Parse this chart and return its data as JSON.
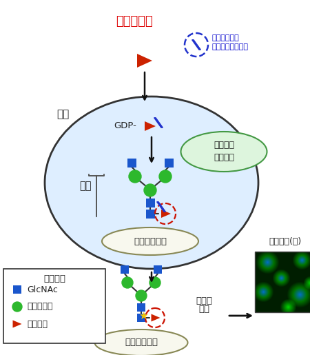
{
  "bg_color": "#ffffff",
  "sugar_analog_text": "糖アナログ",
  "sugar_analog_color": "#dd0000",
  "detection_text_line1": "検出のための",
  "detection_text_line2": "目印（アルキン）",
  "detection_text_color": "#0000cc",
  "cell_text": "細胞",
  "gdp_text": "GDP-",
  "fukose_enzyme_text_line1": "フコース",
  "fukose_enzyme_text_line2": "転移酵素",
  "glycan_text": "糖鎖",
  "glycoprotein_text": "糖タンパク質",
  "legend_title": "糖の記号",
  "legend_item1": "GlcNAc",
  "legend_item2": "マンノース",
  "legend_item3": "フコース",
  "glycan_detection_text": "糖鎖検出(緑)",
  "detection_arrow_text_line1": "目印の",
  "detection_arrow_text_line2": "検出",
  "blue_sq": "#1a56cc",
  "green_ci": "#2db82d",
  "red_tri": "#cc2200",
  "dashed_red": "#cc1100",
  "dashed_blue": "#2233cc",
  "cell_fill": "#deeeff",
  "cell_edge": "#333333",
  "fuc_fill": "#ddf5dd",
  "fuc_edge": "#449944",
  "gp_fill": "#f8f8ee",
  "gp_edge": "#888855",
  "alkyne_color": "#2233cc"
}
